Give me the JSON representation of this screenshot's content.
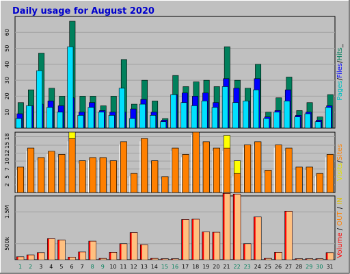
{
  "title": "Daily usage for August 2020",
  "colors": {
    "background": "#c0c0c0",
    "plot_bg": "#c0c0c0",
    "hits": "#00805c",
    "files": "#0000ff",
    "pages": "#00e0ff",
    "visits": "#ffff00",
    "sites": "#ff8000",
    "kbytes": "#ff0000",
    "kbytes_in": "#ff8000",
    "kbytes_out": "#ffc080",
    "weekday_label": "#000000",
    "weekend_label": "#00805c",
    "title": "#0000cc"
  },
  "chart_data": [
    {
      "type": "bar",
      "panel": "top",
      "side_label_parts": [
        {
          "text": "Pages",
          "color": "#00c0c0"
        },
        {
          "text": "/",
          "color": "#000000"
        },
        {
          "text": "Files",
          "color": "#0000ff"
        },
        {
          "text": "/",
          "color": "#000000"
        },
        {
          "text": "Hits",
          "color": "#00805c"
        },
        {
          "text": "_",
          "color": "#000000"
        }
      ],
      "ylim": [
        0,
        70
      ],
      "yticks": [
        "10",
        "20",
        "30",
        "40",
        "50",
        "60"
      ],
      "ytick_values": [
        10,
        20,
        30,
        40,
        50,
        60
      ],
      "categories": [
        "1",
        "2",
        "3",
        "4",
        "5",
        "6",
        "7",
        "8",
        "9",
        "10",
        "11",
        "12",
        "13",
        "14",
        "15",
        "16",
        "17",
        "18",
        "19",
        "20",
        "21",
        "22",
        "23",
        "24",
        "25",
        "26",
        "27",
        "28",
        "29",
        "30",
        "31"
      ],
      "series": [
        {
          "name": "Hits",
          "values": [
            16,
            24,
            47,
            25,
            20,
            67,
            20,
            20,
            14,
            20,
            43,
            15,
            30,
            17,
            6,
            33,
            26,
            29,
            30,
            26,
            51,
            30,
            25,
            40,
            10,
            19,
            32,
            11,
            16,
            7,
            21
          ]
        },
        {
          "name": "Files",
          "values": [
            9,
            14,
            15,
            17,
            14,
            19,
            10,
            16,
            11,
            10,
            10,
            12,
            18,
            10,
            5,
            21,
            22,
            20,
            22,
            16,
            31,
            25,
            17,
            31,
            7,
            11,
            24,
            8,
            10,
            5,
            14
          ]
        },
        {
          "name": "Pages",
          "values": [
            6,
            14,
            36,
            13,
            10,
            51,
            8,
            13,
            10,
            8,
            25,
            6,
            15,
            8,
            4,
            21,
            16,
            14,
            17,
            13,
            26,
            16,
            17,
            24,
            6,
            10,
            17,
            7,
            9,
            4,
            13
          ]
        }
      ]
    },
    {
      "type": "bar",
      "panel": "middle",
      "side_label_parts": [
        {
          "text": "Visits",
          "color": "#e0e000"
        },
        {
          "text": "/",
          "color": "#000000"
        },
        {
          "text": "Sites",
          "color": "#ff8000"
        }
      ],
      "ylim": [
        0,
        19
      ],
      "yticks": [
        "2",
        "5",
        "7",
        "10",
        "12",
        "15",
        "18"
      ],
      "ytick_values": [
        2.4,
        4.9,
        7.4,
        9.9,
        12.4,
        14.9,
        17.6
      ],
      "categories": [
        "1",
        "2",
        "3",
        "4",
        "5",
        "6",
        "7",
        "8",
        "9",
        "10",
        "11",
        "12",
        "13",
        "14",
        "15",
        "16",
        "17",
        "18",
        "19",
        "20",
        "21",
        "22",
        "23",
        "24",
        "25",
        "26",
        "27",
        "28",
        "29",
        "30",
        "31"
      ],
      "series": [
        {
          "name": "Visits",
          "values": [
            8,
            14,
            11,
            13,
            12,
            19,
            10,
            11,
            11,
            10,
            16,
            6,
            17,
            10,
            5,
            14,
            12,
            19,
            16,
            14,
            18,
            10,
            15,
            16,
            7,
            15,
            14,
            8,
            8,
            6,
            12
          ]
        },
        {
          "name": "Sites",
          "values": [
            8,
            14,
            11,
            13,
            12,
            17,
            10,
            11,
            11,
            10,
            16,
            6,
            17,
            10,
            5,
            14,
            12,
            19,
            16,
            14,
            14,
            6,
            15,
            16,
            7,
            15,
            14,
            8,
            8,
            6,
            12
          ]
        }
      ]
    },
    {
      "type": "bar",
      "panel": "bottom",
      "side_label_parts": [
        {
          "text": "Volume",
          "color": "#ff0000"
        },
        {
          "text": " / ",
          "color": "#000000"
        },
        {
          "text": "OUT",
          "color": "#ff8000"
        },
        {
          "text": " / ",
          "color": "#000000"
        },
        {
          "text": "IN",
          "color": "#e0c000"
        }
      ],
      "ylim": [
        0,
        2000
      ],
      "yticks": [
        "500k",
        "1.5M"
      ],
      "ytick_values": [
        500,
        1500
      ],
      "categories": [
        "1",
        "2",
        "3",
        "4",
        "5",
        "6",
        "7",
        "8",
        "9",
        "10",
        "11",
        "12",
        "13",
        "14",
        "15",
        "16",
        "17",
        "18",
        "19",
        "20",
        "21",
        "22",
        "23",
        "24",
        "25",
        "26",
        "27",
        "28",
        "29",
        "30",
        "31"
      ],
      "series": [
        {
          "name": "Volume",
          "values": [
            90,
            150,
            220,
            660,
            620,
            80,
            240,
            580,
            40,
            230,
            500,
            850,
            470,
            40,
            30,
            30,
            1260,
            1270,
            870,
            860,
            2080,
            2060,
            500,
            1340,
            40,
            230,
            1520,
            30,
            30,
            30,
            220
          ]
        },
        {
          "name": "OUT",
          "values": [
            80,
            140,
            210,
            650,
            610,
            70,
            230,
            570,
            30,
            220,
            490,
            840,
            460,
            30,
            20,
            20,
            1250,
            1260,
            860,
            850,
            2070,
            2050,
            490,
            1330,
            30,
            220,
            1510,
            20,
            20,
            20,
            210
          ]
        }
      ]
    }
  ],
  "days": [
    {
      "label": "1",
      "weekend": true
    },
    {
      "label": "2",
      "weekend": true
    },
    {
      "label": "3",
      "weekend": false
    },
    {
      "label": "4",
      "weekend": false
    },
    {
      "label": "5",
      "weekend": false
    },
    {
      "label": "6",
      "weekend": false
    },
    {
      "label": "7",
      "weekend": false
    },
    {
      "label": "8",
      "weekend": true
    },
    {
      "label": "9",
      "weekend": true
    },
    {
      "label": "10",
      "weekend": false
    },
    {
      "label": "11",
      "weekend": false
    },
    {
      "label": "12",
      "weekend": false
    },
    {
      "label": "13",
      "weekend": false
    },
    {
      "label": "14",
      "weekend": false
    },
    {
      "label": "15",
      "weekend": true
    },
    {
      "label": "16",
      "weekend": true
    },
    {
      "label": "17",
      "weekend": false
    },
    {
      "label": "18",
      "weekend": false
    },
    {
      "label": "19",
      "weekend": false
    },
    {
      "label": "20",
      "weekend": false
    },
    {
      "label": "21",
      "weekend": false
    },
    {
      "label": "22",
      "weekend": true
    },
    {
      "label": "23",
      "weekend": true
    },
    {
      "label": "24",
      "weekend": false
    },
    {
      "label": "25",
      "weekend": false
    },
    {
      "label": "26",
      "weekend": false
    },
    {
      "label": "27",
      "weekend": false
    },
    {
      "label": "28",
      "weekend": false
    },
    {
      "label": "29",
      "weekend": true
    },
    {
      "label": "30",
      "weekend": true
    },
    {
      "label": "31",
      "weekend": false
    }
  ]
}
